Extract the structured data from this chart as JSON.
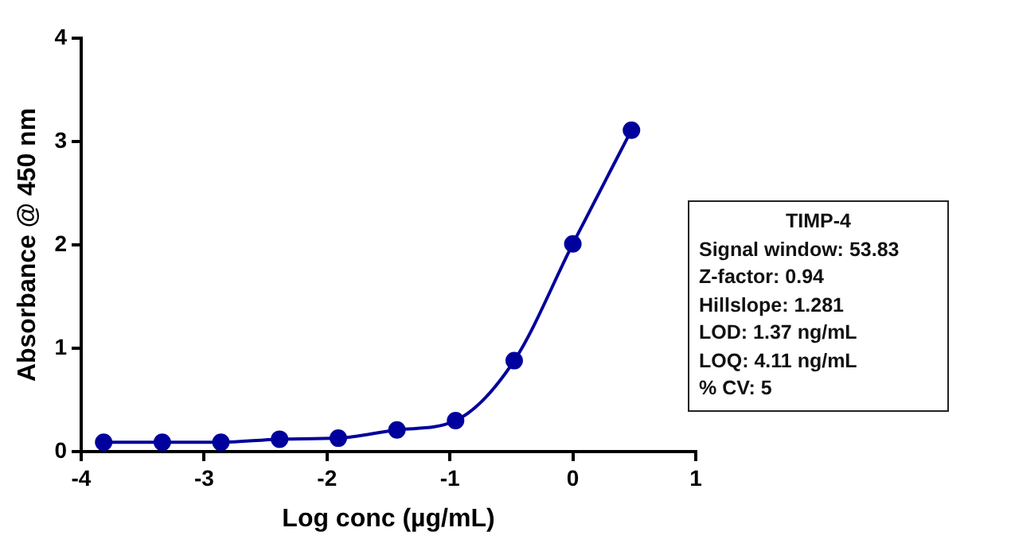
{
  "chart_data": {
    "type": "line",
    "xlabel": "Log conc (µg/mL)",
    "ylabel": "Absorbance @ 450 nm",
    "x": [
      -3.817,
      -3.34,
      -2.863,
      -2.386,
      -1.908,
      -1.431,
      -0.954,
      -0.477,
      0,
      0.477
    ],
    "series": [
      {
        "color": "#00009c",
        "values": [
          0.09,
          0.09,
          0.09,
          0.12,
          0.13,
          0.21,
          0.3,
          0.88,
          2.01,
          3.11
        ]
      }
    ],
    "xlim": [
      -4,
      1
    ],
    "xticks": [
      -4,
      -3,
      -2,
      -1,
      0,
      1
    ],
    "ylim": [
      0,
      4
    ],
    "yticks": [
      0,
      1,
      2,
      3,
      4
    ],
    "grid": false,
    "legend": false,
    "marker": "circle",
    "line_style": "solid",
    "annotations": [
      "TIMP-4",
      "Signal window: 53.83",
      "Z-factor: 0.94",
      "Hillslope: 1.281",
      "LOD: 1.37 ng/mL",
      "LOQ: 4.11 ng/mL",
      "% CV: 5"
    ]
  }
}
